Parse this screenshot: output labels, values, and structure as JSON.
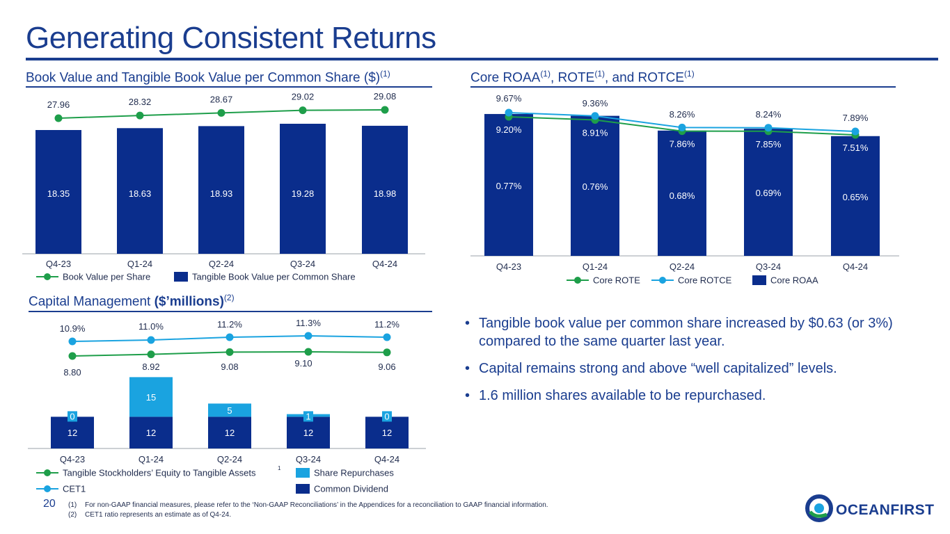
{
  "page": {
    "title": "Generating Consistent Returns",
    "page_number": "20",
    "footnotes": [
      {
        "marker": "(1)",
        "text": "For non-GAAP financial measures, please refer to the ‘Non-GAAP Reconciliations’ in the Appendices for a reconciliation to GAAP financial information."
      },
      {
        "marker": "(2)",
        "text": "CET1 ratio represents an estimate as of Q4-24."
      }
    ],
    "logo_text": "OCEANFIRST"
  },
  "sections": {
    "bv_title": "Book Value and Tangible Book Value per Common Share ($)",
    "bv_title_sup": "(1)",
    "roa_title_a": "Core ROAA",
    "roa_sup1": "(1)",
    "roa_title_b": ", ROTE",
    "roa_sup2": "(1)",
    "roa_title_c": ", and ROTCE",
    "roa_sup3": "(1)",
    "cap_title_a": "Capital Management ",
    "cap_title_b": "($’millions)",
    "cap_sup": "(2)"
  },
  "bullets": [
    "Tangible book value per common share increased by $0.63 (or 3%) compared to the same quarter last year.",
    "Capital remains strong and above “well capitalized” levels.",
    "1.6 million shares available to be repurchased."
  ],
  "colors": {
    "navy": "#0a2d8c",
    "green": "#1e9e4a",
    "lightblue": "#1aa3e0",
    "title": "#1a3d8f"
  },
  "chart_data": [
    {
      "id": "bv",
      "type": "bar",
      "categories": [
        "Q4-23",
        "Q1-24",
        "Q2-24",
        "Q3-24",
        "Q4-24"
      ],
      "series": [
        {
          "name": "Tangible Book Value per Common Share",
          "kind": "bar",
          "values": [
            18.35,
            18.63,
            18.93,
            19.28,
            18.98
          ],
          "labels": [
            "18.35",
            "18.63",
            "18.93",
            "19.28",
            "18.98"
          ]
        },
        {
          "name": "Book Value per Share",
          "kind": "line",
          "values": [
            27.96,
            28.32,
            28.67,
            29.02,
            29.08
          ],
          "labels": [
            "27.96",
            "28.32",
            "28.67",
            "29.02",
            "29.08"
          ]
        }
      ],
      "legend": [
        "Book Value per Share",
        "Tangible Book Value per Common Share"
      ],
      "legend_position": "bottom"
    },
    {
      "id": "roa",
      "type": "bar",
      "categories": [
        "Q4-23",
        "Q1-24",
        "Q2-24",
        "Q3-24",
        "Q4-24"
      ],
      "series": [
        {
          "name": "Core ROAA",
          "kind": "bar",
          "values": [
            0.77,
            0.76,
            0.68,
            0.69,
            0.65
          ],
          "labels": [
            "0.77%",
            "0.76%",
            "0.68%",
            "0.69%",
            "0.65%"
          ]
        },
        {
          "name": "Core ROTE",
          "kind": "line",
          "values": [
            9.2,
            8.91,
            7.86,
            7.85,
            7.51
          ],
          "labels": [
            "9.20%",
            "8.91%",
            "7.86%",
            "7.85%",
            "7.51%"
          ]
        },
        {
          "name": "Core ROTCE",
          "kind": "line",
          "values": [
            9.67,
            9.36,
            8.26,
            8.24,
            7.89
          ],
          "labels": [
            "9.67%",
            "9.36%",
            "8.26%",
            "8.24%",
            "7.89%"
          ]
        }
      ],
      "legend": [
        "Core ROTE",
        "Core ROTCE",
        "Core ROAA"
      ],
      "legend_position": "bottom"
    },
    {
      "id": "cap",
      "type": "bar",
      "categories": [
        "Q4-23",
        "Q1-24",
        "Q2-24",
        "Q3-24",
        "Q4-24"
      ],
      "series": [
        {
          "name": "Common Dividend",
          "kind": "bar",
          "values": [
            12,
            12,
            12,
            12,
            12
          ],
          "labels": [
            "12",
            "12",
            "12",
            "12",
            "12"
          ]
        },
        {
          "name": "Share Repurchases",
          "kind": "bar",
          "values": [
            0,
            15,
            5,
            1,
            0
          ],
          "labels": [
            "0",
            "15",
            "5",
            "1",
            "0"
          ]
        },
        {
          "name": "Tangible Stockholders’ Equity to Tangible Assets",
          "kind": "line",
          "values": [
            8.8,
            8.92,
            9.08,
            9.1,
            9.06
          ],
          "labels": [
            "8.80",
            "8.92",
            "9.08",
            "9.10",
            "9.06"
          ]
        },
        {
          "name": "CET1",
          "kind": "line",
          "values": [
            10.9,
            11.0,
            11.2,
            11.3,
            11.2
          ],
          "labels": [
            "10.9%",
            "11.0%",
            "11.2%",
            "11.3%",
            "11.2%"
          ]
        }
      ],
      "legend": [
        "Tangible Stockholders’ Equity to Tangible Assets",
        "Share Repurchases",
        "CET1",
        "Common Dividend"
      ],
      "legend_sup": "1",
      "legend_position": "bottom"
    }
  ]
}
